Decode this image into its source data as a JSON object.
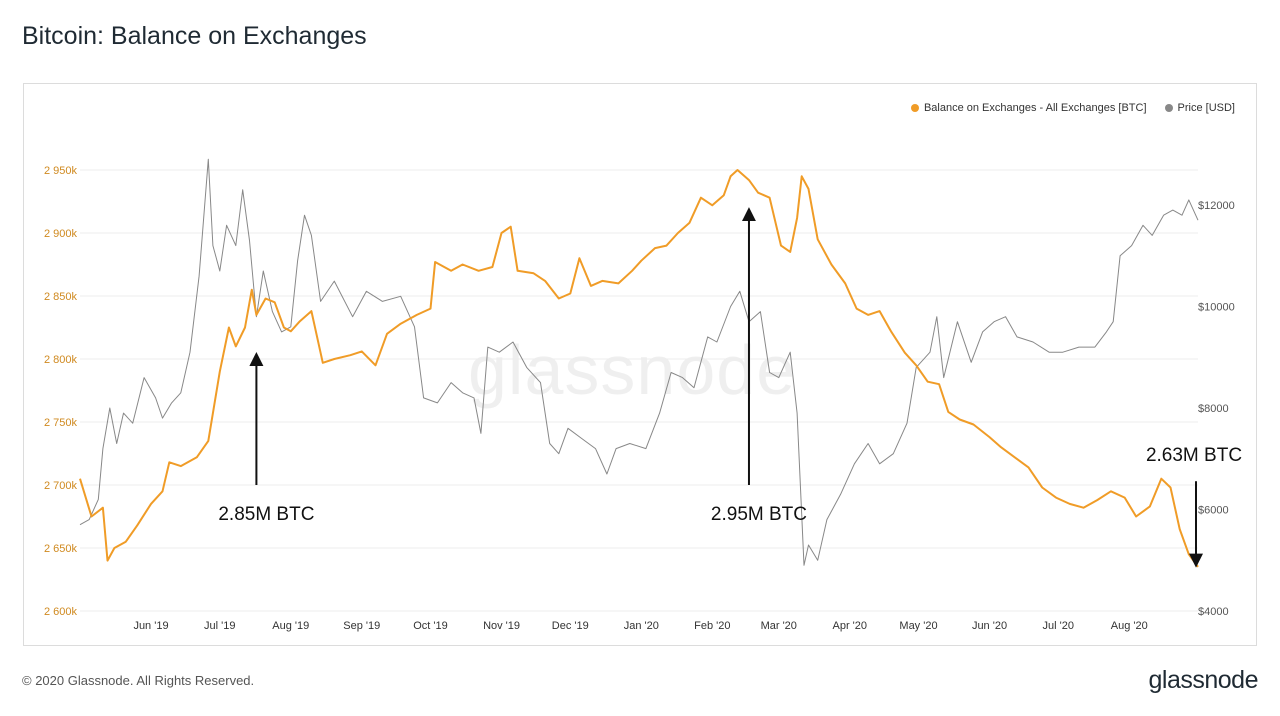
{
  "header": {
    "title": "Bitcoin: Balance on Exchanges"
  },
  "footer": {
    "copyright": "© 2020 Glassnode. All Rights Reserved.",
    "brand": "glassnode"
  },
  "watermark": "glassnode",
  "colors": {
    "balance": "#f09c27",
    "price": "#888888",
    "grid": "#ececec",
    "annotation": "#111111"
  },
  "chart_data": {
    "type": "line",
    "title": "Bitcoin: Balance on Exchanges",
    "legend_position": "top-right",
    "grid": true,
    "x_range": [
      "2019-05-01",
      "2020-08-31"
    ],
    "x_ticks": [
      {
        "date": "2019-06-01",
        "label": "Jun '19"
      },
      {
        "date": "2019-07-01",
        "label": "Jul '19"
      },
      {
        "date": "2019-08-01",
        "label": "Aug '19"
      },
      {
        "date": "2019-09-01",
        "label": "Sep '19"
      },
      {
        "date": "2019-10-01",
        "label": "Oct '19"
      },
      {
        "date": "2019-11-01",
        "label": "Nov '19"
      },
      {
        "date": "2019-12-01",
        "label": "Dec '19"
      },
      {
        "date": "2020-01-01",
        "label": "Jan '20"
      },
      {
        "date": "2020-02-01",
        "label": "Feb '20"
      },
      {
        "date": "2020-03-01",
        "label": "Mar '20"
      },
      {
        "date": "2020-04-01",
        "label": "Apr '20"
      },
      {
        "date": "2020-05-01",
        "label": "May '20"
      },
      {
        "date": "2020-06-01",
        "label": "Jun '20"
      },
      {
        "date": "2020-07-01",
        "label": "Jul '20"
      },
      {
        "date": "2020-08-01",
        "label": "Aug '20"
      }
    ],
    "y_left": {
      "range": [
        2600,
        2950
      ],
      "ticks": [
        {
          "value": 2950,
          "label": "2 950k"
        },
        {
          "value": 2900,
          "label": "2 900k"
        },
        {
          "value": 2850,
          "label": "2 850k"
        },
        {
          "value": 2800,
          "label": "2 800k"
        },
        {
          "value": 2750,
          "label": "2 750k"
        },
        {
          "value": 2700,
          "label": "2 700k"
        },
        {
          "value": 2650,
          "label": "2 650k"
        },
        {
          "value": 2600,
          "label": "2 600k"
        }
      ]
    },
    "y_right": {
      "range": [
        4000,
        12000
      ],
      "ticks": [
        {
          "value": 12000,
          "label": "$12000"
        },
        {
          "value": 10000,
          "label": "$10000"
        },
        {
          "value": 8000,
          "label": "$8000"
        },
        {
          "value": 6000,
          "label": "$6000"
        },
        {
          "value": 4000,
          "label": "$4000"
        }
      ]
    },
    "series": [
      {
        "name": "Balance on Exchanges - All Exchanges [BTC]",
        "axis": "left",
        "points": [
          [
            "2019-05-01",
            2705
          ],
          [
            "2019-05-06",
            2675
          ],
          [
            "2019-05-11",
            2682
          ],
          [
            "2019-05-13",
            2640
          ],
          [
            "2019-05-16",
            2650
          ],
          [
            "2019-05-21",
            2655
          ],
          [
            "2019-05-26",
            2668
          ],
          [
            "2019-06-01",
            2685
          ],
          [
            "2019-06-06",
            2695
          ],
          [
            "2019-06-09",
            2718
          ],
          [
            "2019-06-14",
            2715
          ],
          [
            "2019-06-21",
            2722
          ],
          [
            "2019-06-26",
            2735
          ],
          [
            "2019-07-01",
            2790
          ],
          [
            "2019-07-05",
            2825
          ],
          [
            "2019-07-08",
            2810
          ],
          [
            "2019-07-12",
            2825
          ],
          [
            "2019-07-15",
            2855
          ],
          [
            "2019-07-17",
            2835
          ],
          [
            "2019-07-21",
            2848
          ],
          [
            "2019-07-25",
            2845
          ],
          [
            "2019-07-29",
            2825
          ],
          [
            "2019-08-01",
            2822
          ],
          [
            "2019-08-05",
            2830
          ],
          [
            "2019-08-10",
            2838
          ],
          [
            "2019-08-15",
            2797
          ],
          [
            "2019-08-20",
            2800
          ],
          [
            "2019-08-27",
            2803
          ],
          [
            "2019-09-01",
            2806
          ],
          [
            "2019-09-07",
            2795
          ],
          [
            "2019-09-12",
            2820
          ],
          [
            "2019-09-18",
            2828
          ],
          [
            "2019-09-25",
            2835
          ],
          [
            "2019-10-01",
            2840
          ],
          [
            "2019-10-03",
            2877
          ],
          [
            "2019-10-10",
            2870
          ],
          [
            "2019-10-15",
            2875
          ],
          [
            "2019-10-22",
            2870
          ],
          [
            "2019-10-28",
            2873
          ],
          [
            "2019-11-01",
            2900
          ],
          [
            "2019-11-05",
            2905
          ],
          [
            "2019-11-08",
            2870
          ],
          [
            "2019-11-15",
            2868
          ],
          [
            "2019-11-20",
            2862
          ],
          [
            "2019-11-26",
            2848
          ],
          [
            "2019-12-01",
            2852
          ],
          [
            "2019-12-05",
            2880
          ],
          [
            "2019-12-10",
            2858
          ],
          [
            "2019-12-15",
            2862
          ],
          [
            "2019-12-22",
            2860
          ],
          [
            "2019-12-28",
            2870
          ],
          [
            "2020-01-01",
            2878
          ],
          [
            "2020-01-07",
            2888
          ],
          [
            "2020-01-12",
            2890
          ],
          [
            "2020-01-17",
            2900
          ],
          [
            "2020-01-22",
            2908
          ],
          [
            "2020-01-27",
            2928
          ],
          [
            "2020-02-01",
            2922
          ],
          [
            "2020-02-06",
            2930
          ],
          [
            "2020-02-09",
            2945
          ],
          [
            "2020-02-12",
            2950
          ],
          [
            "2020-02-17",
            2942
          ],
          [
            "2020-02-21",
            2932
          ],
          [
            "2020-02-26",
            2928
          ],
          [
            "2020-03-02",
            2890
          ],
          [
            "2020-03-06",
            2885
          ],
          [
            "2020-03-09",
            2912
          ],
          [
            "2020-03-11",
            2945
          ],
          [
            "2020-03-14",
            2935
          ],
          [
            "2020-03-18",
            2895
          ],
          [
            "2020-03-24",
            2875
          ],
          [
            "2020-03-30",
            2860
          ],
          [
            "2020-04-04",
            2840
          ],
          [
            "2020-04-09",
            2835
          ],
          [
            "2020-04-14",
            2838
          ],
          [
            "2020-04-19",
            2822
          ],
          [
            "2020-04-25",
            2805
          ],
          [
            "2020-04-30",
            2795
          ],
          [
            "2020-05-05",
            2782
          ],
          [
            "2020-05-10",
            2780
          ],
          [
            "2020-05-14",
            2758
          ],
          [
            "2020-05-19",
            2752
          ],
          [
            "2020-05-25",
            2748
          ],
          [
            "2020-06-01",
            2738
          ],
          [
            "2020-06-06",
            2730
          ],
          [
            "2020-06-12",
            2722
          ],
          [
            "2020-06-18",
            2714
          ],
          [
            "2020-06-24",
            2698
          ],
          [
            "2020-06-30",
            2690
          ],
          [
            "2020-07-06",
            2685
          ],
          [
            "2020-07-12",
            2682
          ],
          [
            "2020-07-18",
            2688
          ],
          [
            "2020-07-24",
            2695
          ],
          [
            "2020-07-30",
            2690
          ],
          [
            "2020-08-04",
            2675
          ],
          [
            "2020-08-10",
            2683
          ],
          [
            "2020-08-15",
            2705
          ],
          [
            "2020-08-19",
            2698
          ],
          [
            "2020-08-23",
            2665
          ],
          [
            "2020-08-27",
            2645
          ],
          [
            "2020-08-31",
            2635
          ]
        ]
      },
      {
        "name": "Price [USD]",
        "axis": "right",
        "points": [
          [
            "2019-05-01",
            5700
          ],
          [
            "2019-05-05",
            5800
          ],
          [
            "2019-05-09",
            6200
          ],
          [
            "2019-05-11",
            7200
          ],
          [
            "2019-05-14",
            8000
          ],
          [
            "2019-05-17",
            7300
          ],
          [
            "2019-05-20",
            7900
          ],
          [
            "2019-05-24",
            7700
          ],
          [
            "2019-05-29",
            8600
          ],
          [
            "2019-06-03",
            8200
          ],
          [
            "2019-06-06",
            7800
          ],
          [
            "2019-06-10",
            8100
          ],
          [
            "2019-06-14",
            8300
          ],
          [
            "2019-06-18",
            9100
          ],
          [
            "2019-06-22",
            10600
          ],
          [
            "2019-06-26",
            12900
          ],
          [
            "2019-06-28",
            11200
          ],
          [
            "2019-07-01",
            10700
          ],
          [
            "2019-07-04",
            11600
          ],
          [
            "2019-07-08",
            11200
          ],
          [
            "2019-07-11",
            12300
          ],
          [
            "2019-07-14",
            11300
          ],
          [
            "2019-07-17",
            9800
          ],
          [
            "2019-07-20",
            10700
          ],
          [
            "2019-07-24",
            9900
          ],
          [
            "2019-07-28",
            9500
          ],
          [
            "2019-08-01",
            9600
          ],
          [
            "2019-08-04",
            10900
          ],
          [
            "2019-08-07",
            11800
          ],
          [
            "2019-08-10",
            11400
          ],
          [
            "2019-08-14",
            10100
          ],
          [
            "2019-08-20",
            10500
          ],
          [
            "2019-08-28",
            9800
          ],
          [
            "2019-09-03",
            10300
          ],
          [
            "2019-09-10",
            10100
          ],
          [
            "2019-09-18",
            10200
          ],
          [
            "2019-09-24",
            9600
          ],
          [
            "2019-09-28",
            8200
          ],
          [
            "2019-10-04",
            8100
          ],
          [
            "2019-10-10",
            8500
          ],
          [
            "2019-10-15",
            8300
          ],
          [
            "2019-10-20",
            8200
          ],
          [
            "2019-10-23",
            7500
          ],
          [
            "2019-10-26",
            9200
          ],
          [
            "2019-10-31",
            9100
          ],
          [
            "2019-11-06",
            9300
          ],
          [
            "2019-11-12",
            8800
          ],
          [
            "2019-11-18",
            8500
          ],
          [
            "2019-11-22",
            7300
          ],
          [
            "2019-11-26",
            7100
          ],
          [
            "2019-11-30",
            7600
          ],
          [
            "2019-12-06",
            7400
          ],
          [
            "2019-12-12",
            7200
          ],
          [
            "2019-12-17",
            6700
          ],
          [
            "2019-12-21",
            7200
          ],
          [
            "2019-12-27",
            7300
          ],
          [
            "2020-01-03",
            7200
          ],
          [
            "2020-01-09",
            7900
          ],
          [
            "2020-01-14",
            8700
          ],
          [
            "2020-01-19",
            8600
          ],
          [
            "2020-01-24",
            8400
          ],
          [
            "2020-01-30",
            9400
          ],
          [
            "2020-02-03",
            9300
          ],
          [
            "2020-02-09",
            10000
          ],
          [
            "2020-02-13",
            10300
          ],
          [
            "2020-02-17",
            9700
          ],
          [
            "2020-02-22",
            9900
          ],
          [
            "2020-02-26",
            8700
          ],
          [
            "2020-03-01",
            8600
          ],
          [
            "2020-03-06",
            9100
          ],
          [
            "2020-03-09",
            7900
          ],
          [
            "2020-03-12",
            4900
          ],
          [
            "2020-03-14",
            5300
          ],
          [
            "2020-03-18",
            5000
          ],
          [
            "2020-03-22",
            5800
          ],
          [
            "2020-03-28",
            6300
          ],
          [
            "2020-04-03",
            6900
          ],
          [
            "2020-04-09",
            7300
          ],
          [
            "2020-04-14",
            6900
          ],
          [
            "2020-04-20",
            7100
          ],
          [
            "2020-04-26",
            7700
          ],
          [
            "2020-04-30",
            8800
          ],
          [
            "2020-05-06",
            9100
          ],
          [
            "2020-05-09",
            9800
          ],
          [
            "2020-05-12",
            8600
          ],
          [
            "2020-05-18",
            9700
          ],
          [
            "2020-05-24",
            8900
          ],
          [
            "2020-05-29",
            9500
          ],
          [
            "2020-06-03",
            9700
          ],
          [
            "2020-06-08",
            9800
          ],
          [
            "2020-06-13",
            9400
          ],
          [
            "2020-06-20",
            9300
          ],
          [
            "2020-06-27",
            9100
          ],
          [
            "2020-07-03",
            9100
          ],
          [
            "2020-07-10",
            9200
          ],
          [
            "2020-07-17",
            9200
          ],
          [
            "2020-07-22",
            9500
          ],
          [
            "2020-07-25",
            9700
          ],
          [
            "2020-07-28",
            11000
          ],
          [
            "2020-08-02",
            11200
          ],
          [
            "2020-08-07",
            11600
          ],
          [
            "2020-08-11",
            11400
          ],
          [
            "2020-08-16",
            11800
          ],
          [
            "2020-08-20",
            11900
          ],
          [
            "2020-08-24",
            11800
          ],
          [
            "2020-08-27",
            12100
          ],
          [
            "2020-08-31",
            11700
          ]
        ]
      }
    ],
    "annotations": [
      {
        "label": "2.85M BTC",
        "date": "2019-07-17",
        "from": 2700,
        "to": 2800
      },
      {
        "label": "2.95M BTC",
        "date": "2020-02-17",
        "from": 2700,
        "to": 2915
      },
      {
        "label": "2.63M BTC",
        "date": "2020-08-31",
        "from": 2703,
        "to": 2640
      }
    ]
  }
}
